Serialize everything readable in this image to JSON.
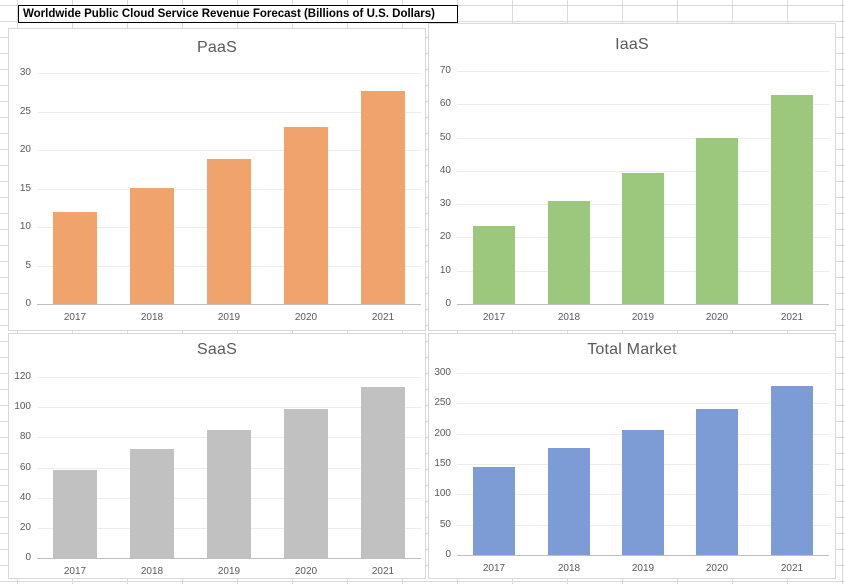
{
  "sheet": {
    "title_cell": "Worldwide Public Cloud Service Revenue Forecast (Billions of U.S. Dollars)"
  },
  "chart_data": [
    {
      "type": "bar",
      "id": "paas",
      "title": "PaaS",
      "categories": [
        "2017",
        "2018",
        "2019",
        "2020",
        "2021"
      ],
      "values": [
        11.9,
        15.1,
        18.8,
        23.0,
        27.7
      ],
      "xlabel": "",
      "ylabel": "",
      "ylim": [
        0,
        30
      ],
      "ytick_step": 5,
      "bar_color": "#F1A36C",
      "grid": true,
      "legend": "none"
    },
    {
      "type": "bar",
      "id": "iaas",
      "title": "IaaS",
      "categories": [
        "2017",
        "2018",
        "2019",
        "2020",
        "2021"
      ],
      "values": [
        23.5,
        31.0,
        39.5,
        50.0,
        62.9
      ],
      "xlabel": "",
      "ylabel": "",
      "ylim": [
        0,
        70
      ],
      "ytick_step": 10,
      "bar_color": "#9CC87E",
      "grid": true,
      "legend": "none"
    },
    {
      "type": "bar",
      "id": "saas",
      "title": "SaaS",
      "categories": [
        "2017",
        "2018",
        "2019",
        "2020",
        "2021"
      ],
      "values": [
        58.5,
        72.2,
        84.9,
        98.9,
        113.3
      ],
      "xlabel": "",
      "ylabel": "",
      "ylim": [
        0,
        120
      ],
      "ytick_step": 20,
      "bar_color": "#C1C1C1",
      "grid": true,
      "legend": "none"
    },
    {
      "type": "bar",
      "id": "total-market",
      "title": "Total Market",
      "categories": [
        "2017",
        "2018",
        "2019",
        "2020",
        "2021"
      ],
      "values": [
        145.5,
        176.0,
        206.2,
        240.5,
        278.4
      ],
      "xlabel": "",
      "ylabel": "",
      "ylim": [
        0,
        300
      ],
      "ytick_step": 50,
      "bar_color": "#7D9BD4",
      "grid": true,
      "legend": "none"
    }
  ],
  "colors": {
    "paas_bar": "#F1A36C",
    "iaas_bar": "#9CC87E",
    "saas_bar": "#C1C1C1",
    "total_bar": "#7D9BD4",
    "axis_text": "#595959",
    "chart_title_text": "#595959",
    "plot_gridline": "#EDEDED",
    "axis_line": "#BFBFBF",
    "sheet_gridline": "#D9D9D9"
  }
}
